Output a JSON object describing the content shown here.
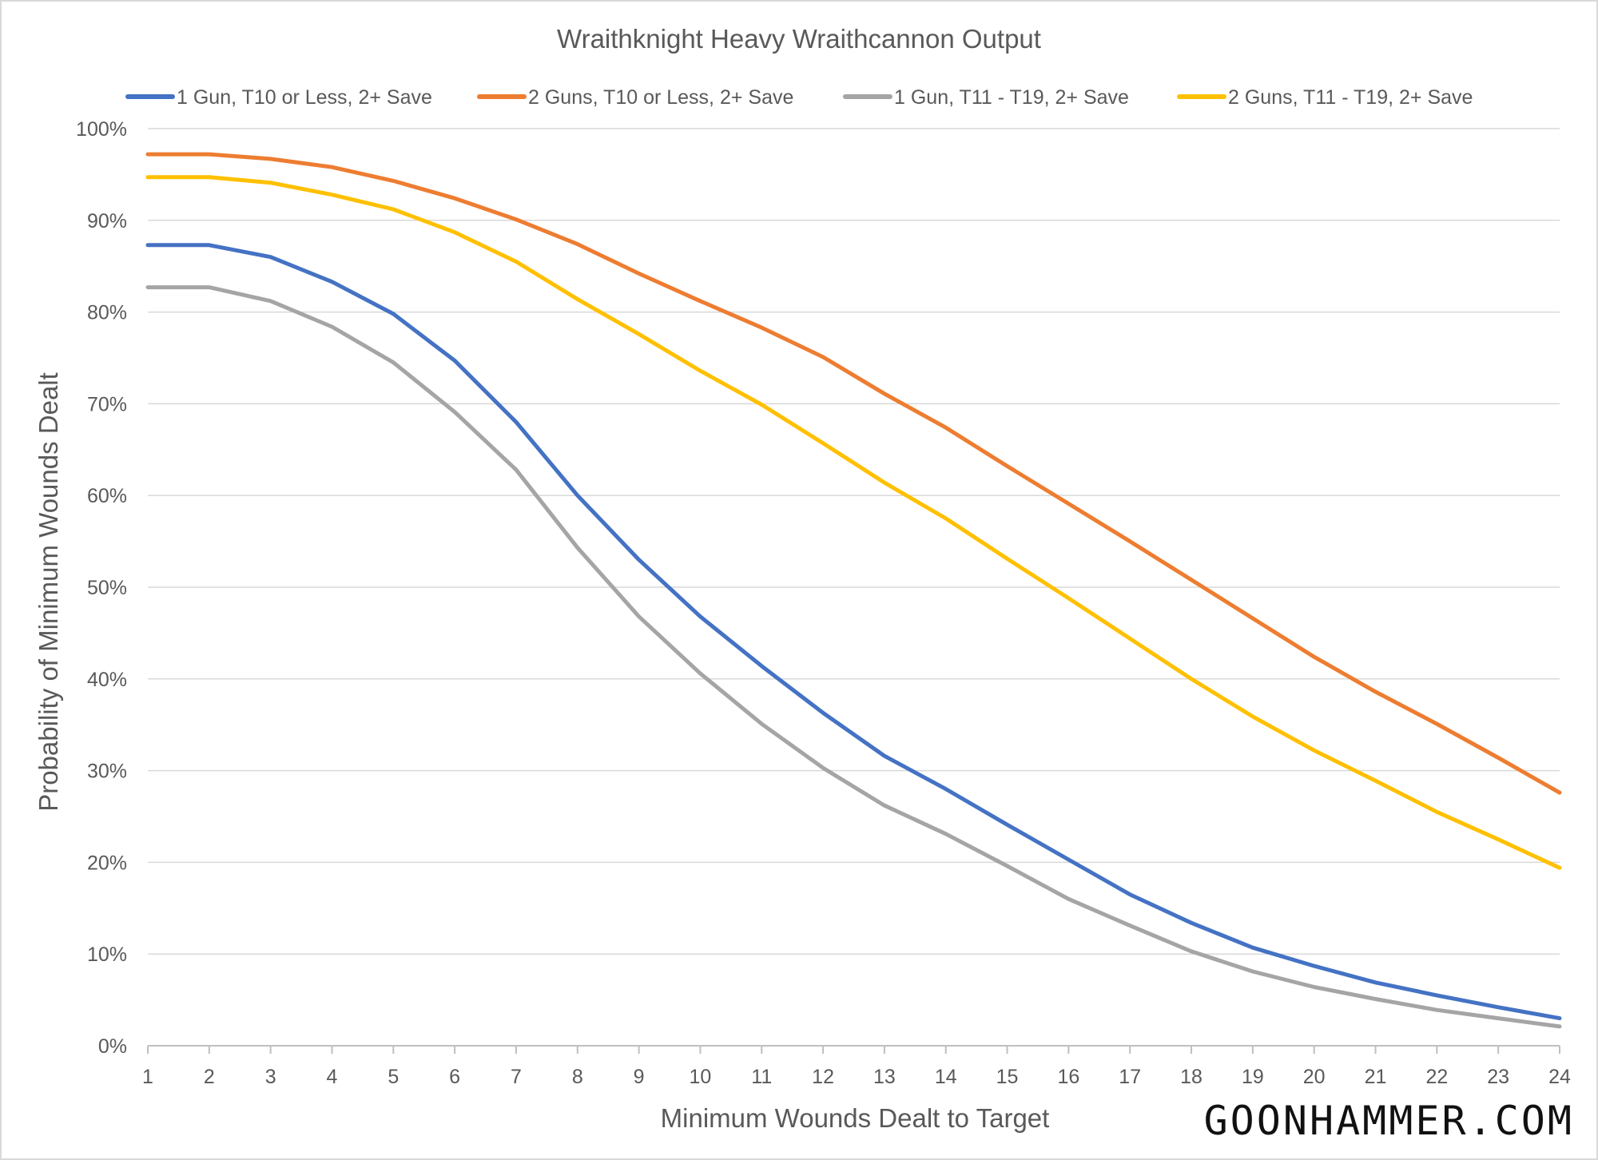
{
  "brand": "GOONHAMMER.COM",
  "chart_data": {
    "type": "line",
    "title": "Wraithknight Heavy Wraithcannon Output",
    "xlabel": "Minimum Wounds Dealt to Target",
    "ylabel": "Probability of Minimum Wounds Dealt",
    "x": [
      1,
      2,
      3,
      4,
      5,
      6,
      7,
      8,
      9,
      10,
      11,
      12,
      13,
      14,
      15,
      16,
      17,
      18,
      19,
      20,
      21,
      22,
      23,
      24
    ],
    "y_ticks": [
      "0%",
      "10%",
      "20%",
      "30%",
      "40%",
      "50%",
      "60%",
      "70%",
      "80%",
      "90%",
      "100%"
    ],
    "ylim": [
      0,
      100
    ],
    "y_unit": "%",
    "grid": true,
    "legend_position": "top",
    "series": [
      {
        "name": "1 Gun, T10 or Less, 2+ Save",
        "color": "#4472c4",
        "values": [
          87.3,
          87.3,
          86.0,
          83.3,
          79.8,
          74.7,
          68.0,
          60.0,
          53.0,
          46.8,
          41.4,
          36.3,
          31.6,
          28.0,
          24.1,
          20.3,
          16.5,
          13.4,
          10.7,
          8.7,
          6.9,
          5.5,
          4.2,
          3.0
        ]
      },
      {
        "name": "2 Guns, T10 or Less, 2+ Save",
        "color": "#ed7d31",
        "values": [
          97.2,
          97.2,
          96.7,
          95.8,
          94.3,
          92.4,
          90.1,
          87.4,
          84.2,
          81.2,
          78.3,
          75.1,
          71.1,
          67.4,
          63.2,
          59.1,
          55.0,
          50.8,
          46.6,
          42.4,
          38.6,
          35.1,
          31.4,
          27.6
        ]
      },
      {
        "name": "1 Gun, T11 - T19, 2+ Save",
        "color": "#a5a5a5",
        "values": [
          82.7,
          82.7,
          81.2,
          78.4,
          74.5,
          69.1,
          62.8,
          54.3,
          46.8,
          40.6,
          35.1,
          30.3,
          26.2,
          23.1,
          19.6,
          16.0,
          13.1,
          10.3,
          8.1,
          6.4,
          5.1,
          3.9,
          3.0,
          2.1
        ]
      },
      {
        "name": "2 Guns, T11 - T19, 2+ Save",
        "color": "#ffc000",
        "values": [
          94.7,
          94.7,
          94.1,
          92.8,
          91.2,
          88.7,
          85.5,
          81.4,
          77.6,
          73.6,
          69.9,
          65.7,
          61.4,
          57.5,
          53.1,
          48.8,
          44.4,
          40.0,
          35.9,
          32.2,
          28.9,
          25.5,
          22.5,
          19.4
        ]
      }
    ]
  }
}
